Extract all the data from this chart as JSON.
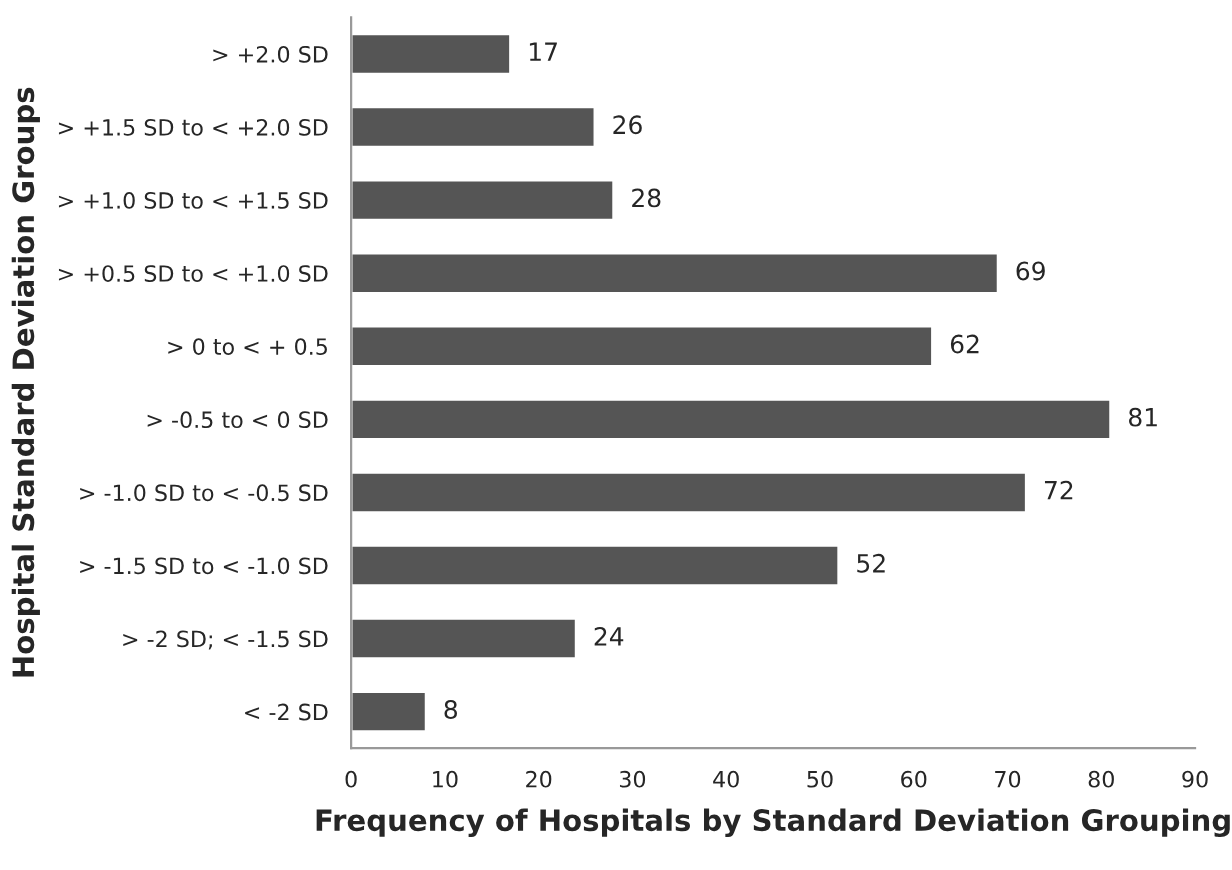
{
  "chart_data": {
    "type": "bar",
    "orientation": "horizontal",
    "xlabel": "Frequency of Hospitals by Standard Deviation Grouping",
    "ylabel": "Hospital Standard Deviation Groups",
    "categories": [
      "> +2.0 SD",
      "> +1.5 SD to < +2.0 SD",
      "> +1.0 SD to < +1.5 SD",
      "> +0.5 SD to < +1.0 SD",
      "> 0 to < + 0.5",
      "> -0.5 to < 0 SD",
      "> -1.0 SD to < -0.5 SD",
      "> -1.5 SD to < -1.0 SD",
      "> -2 SD; < -1.5 SD",
      "< -2 SD"
    ],
    "values": [
      17,
      26,
      28,
      69,
      62,
      81,
      72,
      52,
      24,
      8
    ],
    "color": "#555555",
    "xlim": [
      0,
      90
    ],
    "xticks": [
      0,
      10,
      20,
      30,
      40,
      50,
      60,
      70,
      80,
      90
    ],
    "data_labels": true,
    "grid": false,
    "legend": false
  }
}
